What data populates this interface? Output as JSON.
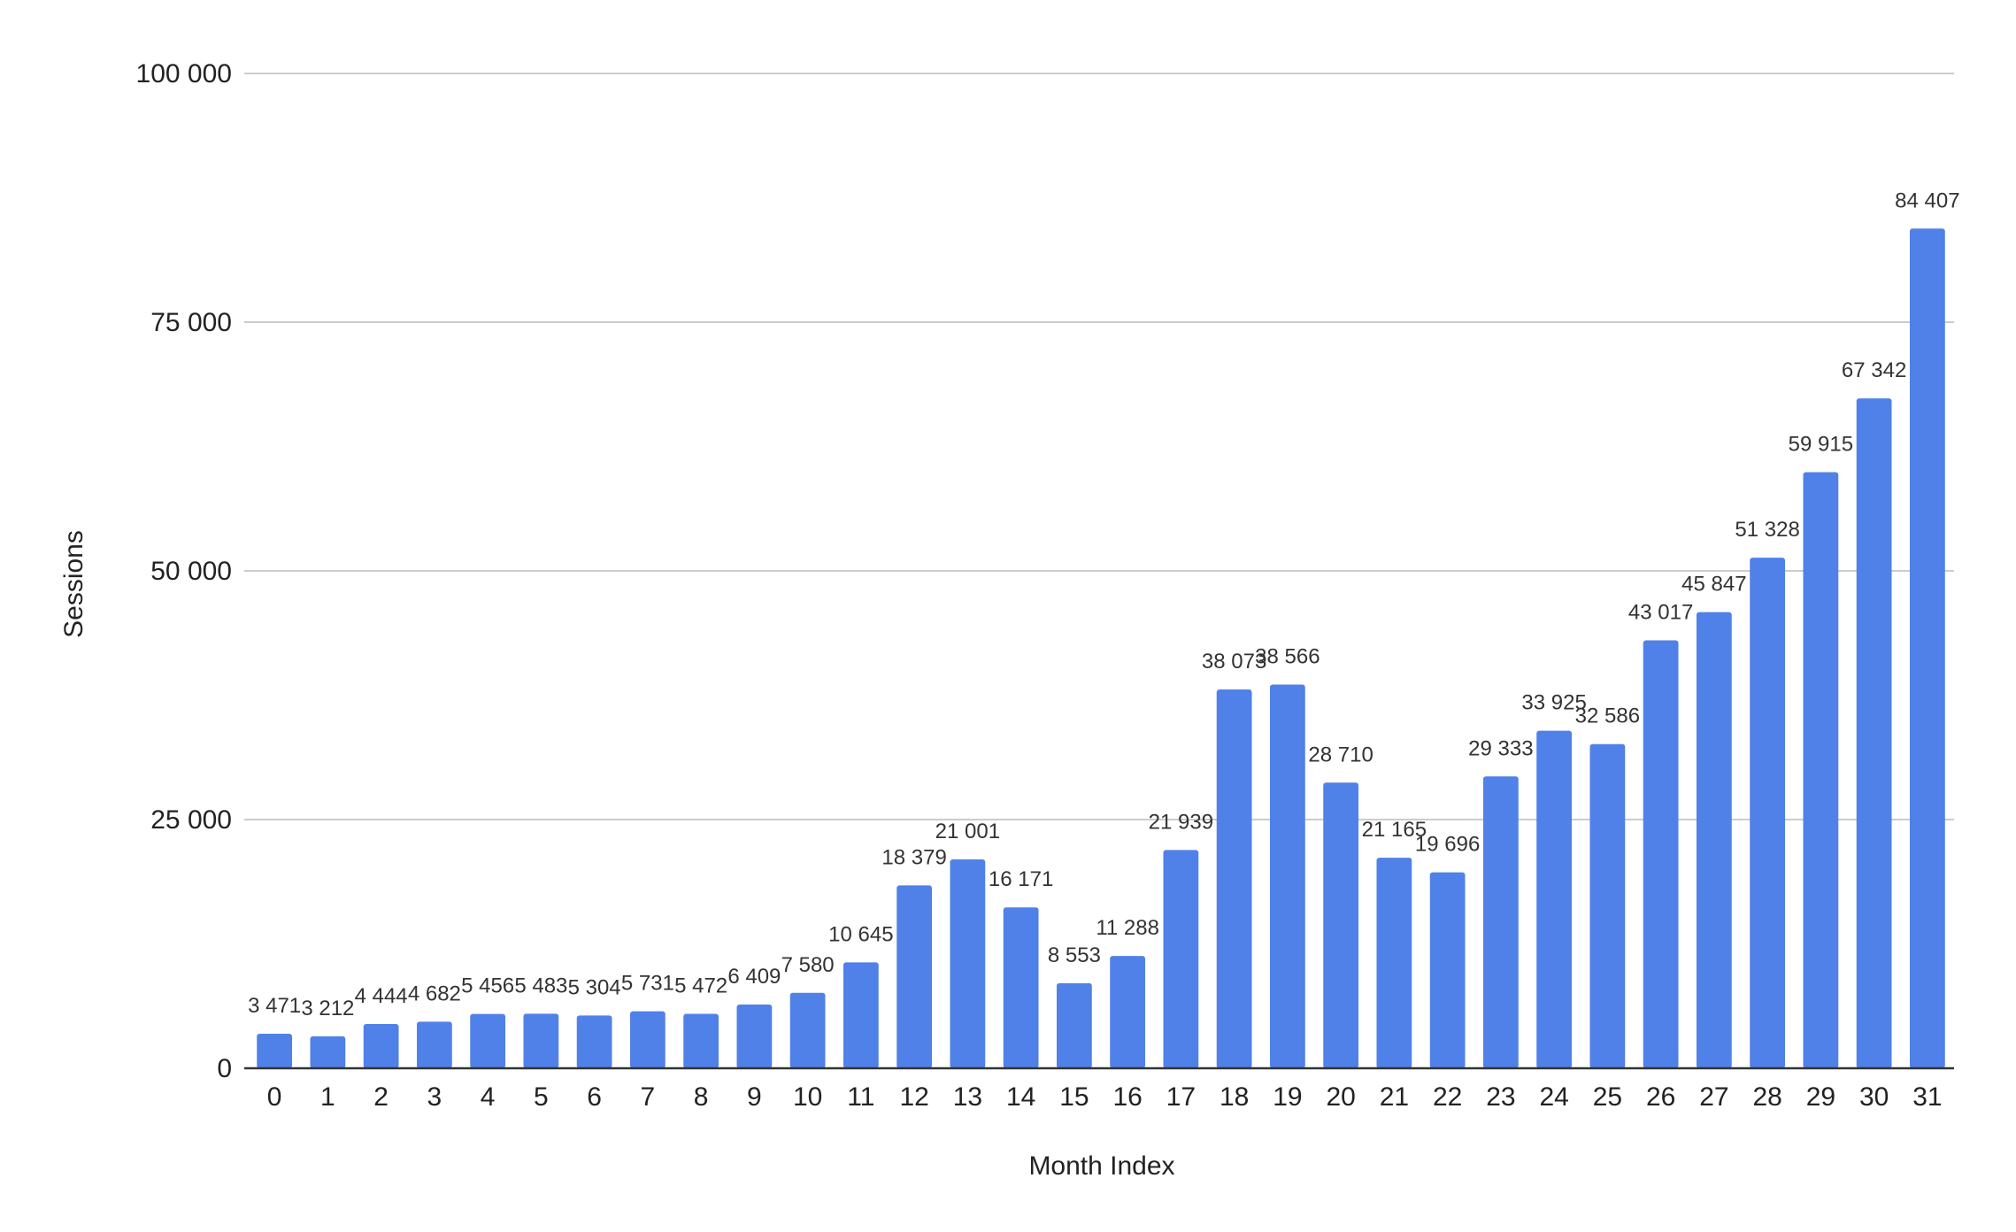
{
  "chart_data": {
    "type": "bar",
    "title": "",
    "xlabel": "Month Index",
    "ylabel": "Sessions",
    "ylim": [
      0,
      100000
    ],
    "yticks": [
      0,
      25000,
      50000,
      75000,
      100000
    ],
    "ytick_labels": [
      "0",
      "25 000",
      "50 000",
      "75 000",
      "100 000"
    ],
    "grid": true,
    "legend": "none",
    "bar_color": "#4f81e8",
    "categories": [
      "0",
      "1",
      "2",
      "3",
      "4",
      "5",
      "6",
      "7",
      "8",
      "9",
      "10",
      "11",
      "12",
      "13",
      "14",
      "15",
      "16",
      "17",
      "18",
      "19",
      "20",
      "21",
      "22",
      "23",
      "24",
      "25",
      "26",
      "27",
      "28",
      "29",
      "30",
      "31"
    ],
    "values": [
      3471,
      3212,
      4444,
      4682,
      5456,
      5483,
      5304,
      5731,
      5472,
      6409,
      7580,
      10645,
      18379,
      21001,
      16171,
      8553,
      11288,
      21939,
      38073,
      38566,
      28710,
      21165,
      19696,
      29333,
      33925,
      32586,
      43017,
      45847,
      51328,
      59915,
      67342,
      84407
    ],
    "value_labels": [
      "3 471",
      "3 212",
      "4 444",
      "4 682",
      "5 456",
      "5 483",
      "5 304",
      "5 731",
      "5 472",
      "6 409",
      "7 580",
      "10 645",
      "18 379",
      "21 001",
      "16 171",
      "8 553",
      "11 288",
      "21 939",
      "38 073",
      "38 566",
      "28 710",
      "21 165",
      "19 696",
      "29 333",
      "33 925",
      "32 586",
      "43 017",
      "45 847",
      "51 328",
      "59 915",
      "67 342",
      "84 407"
    ]
  }
}
